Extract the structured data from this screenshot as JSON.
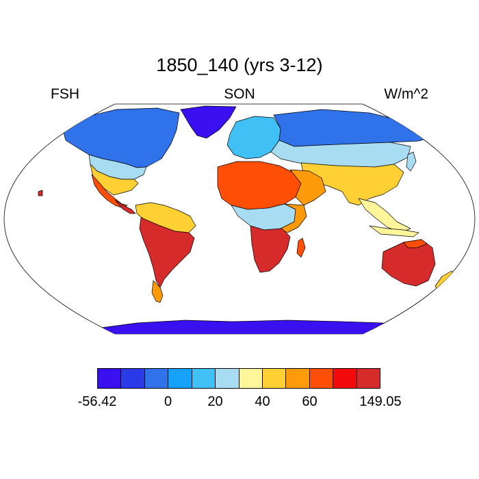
{
  "header": {
    "title": "1850_140 (yrs 3-12)",
    "left_label": "FSH",
    "center_label": "SON",
    "right_label": "W/m^2"
  },
  "colorbar": {
    "colors": [
      "#3a0ff0",
      "#2a3ae8",
      "#2f72ea",
      "#15a2f8",
      "#41c0f5",
      "#a8dcf2",
      "#fff59a",
      "#ffd033",
      "#ff9a0a",
      "#ff4e05",
      "#f30a0a",
      "#d62b2b"
    ],
    "labels": [
      {
        "text": "-56.42",
        "boundary": 0
      },
      {
        "text": "0",
        "boundary": 3
      },
      {
        "text": "20",
        "boundary": 5
      },
      {
        "text": "40",
        "boundary": 7
      },
      {
        "text": "60",
        "boundary": 9
      },
      {
        "text": "149.05",
        "boundary": 12
      }
    ]
  },
  "map": {
    "projection": "robinson",
    "ocean_color": "#ffffff",
    "coastline_color": "#000000"
  }
}
